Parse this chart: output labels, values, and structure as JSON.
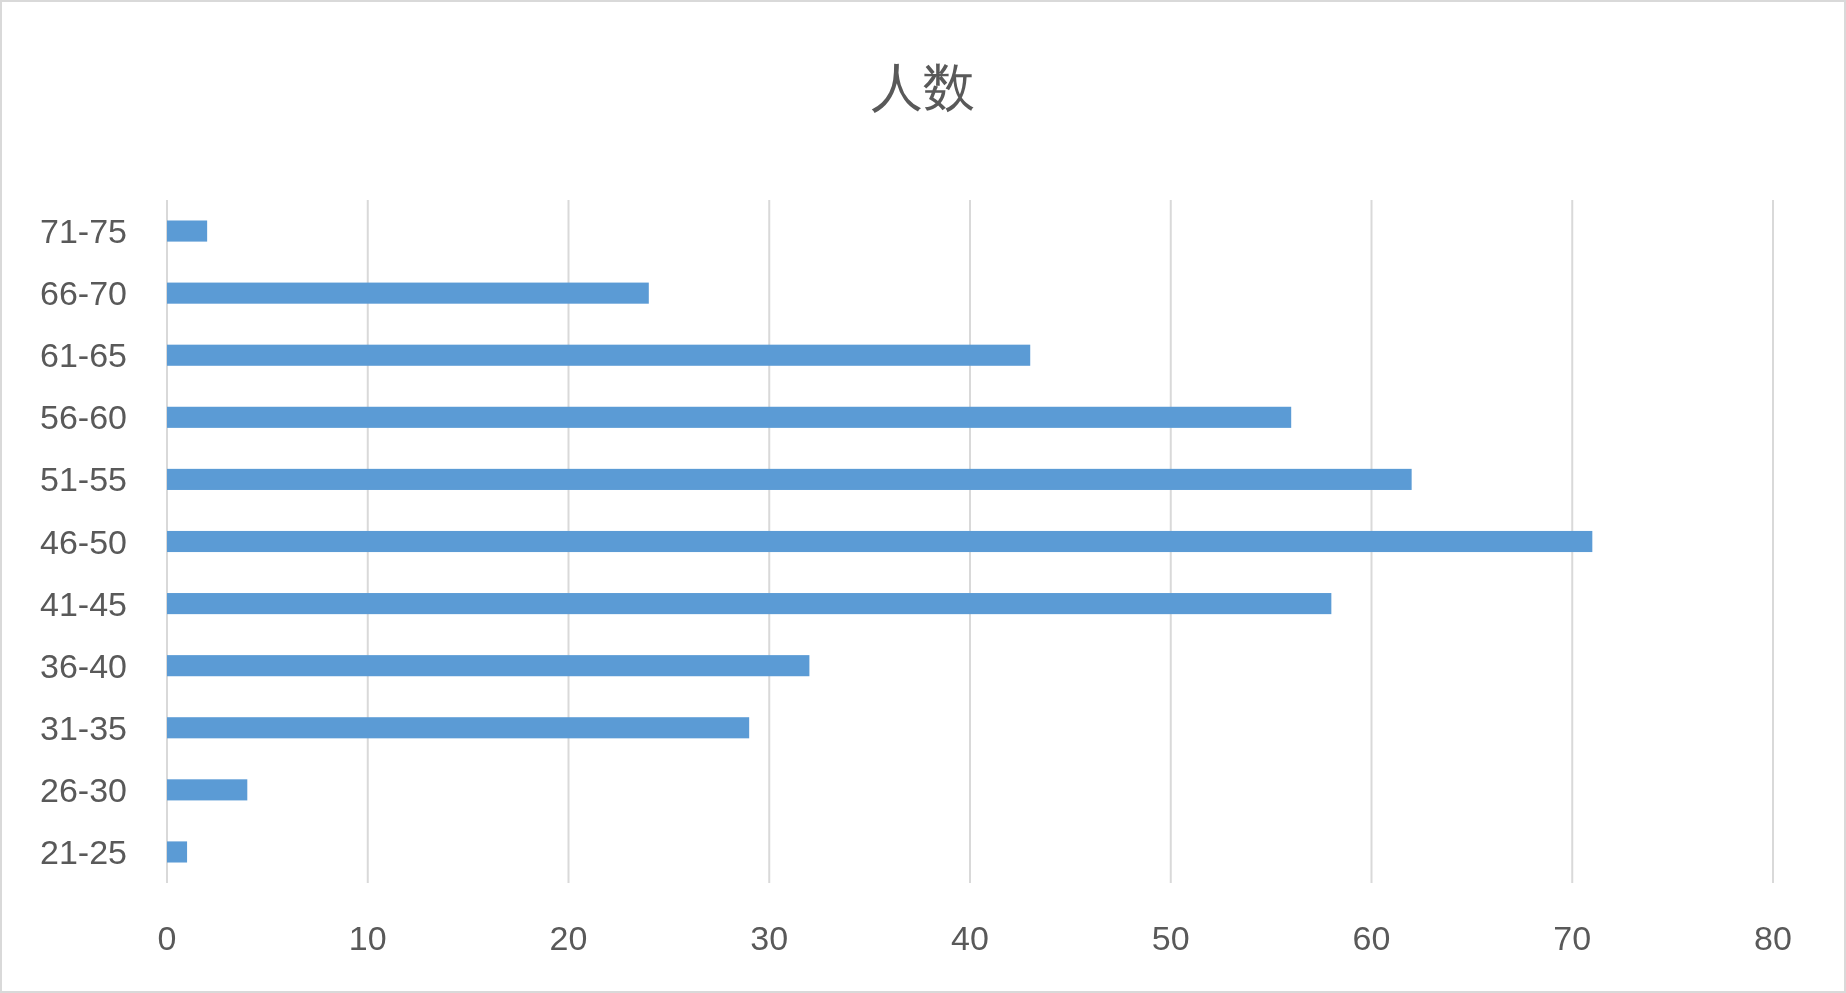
{
  "chart_data": {
    "type": "bar",
    "title": "人数",
    "orientation": "horizontal",
    "categories": [
      "71-75",
      "66-70",
      "61-65",
      "56-60",
      "51-55",
      "46-50",
      "41-45",
      "36-40",
      "31-35",
      "26-30",
      "21-25"
    ],
    "values": [
      2,
      24,
      43,
      56,
      62,
      71,
      58,
      32,
      29,
      4,
      1
    ],
    "color": "#5b9bd5",
    "xlim": [
      0,
      80
    ],
    "xticks": [
      0,
      10,
      20,
      30,
      40,
      50,
      60,
      70,
      80
    ],
    "grid": "x"
  }
}
